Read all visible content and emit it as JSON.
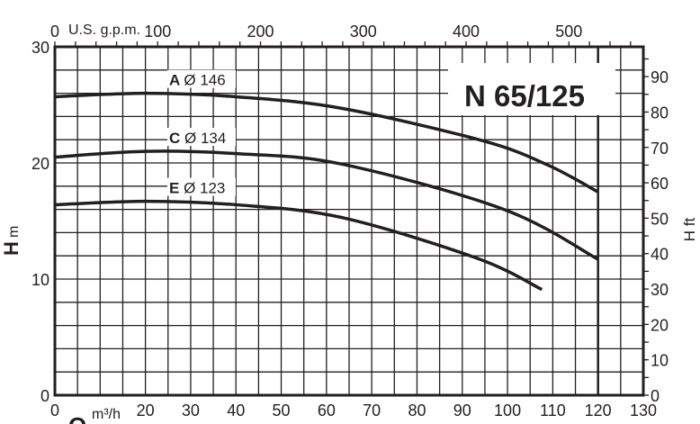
{
  "chart_data": {
    "type": "line",
    "title": "N 65/125",
    "xlabel": "Q",
    "xunit": "m³/h",
    "x2label": "U.S. g.p.m.",
    "ylabel": "H",
    "yunit": "m",
    "y2label": "H ft",
    "xlim": [
      0,
      130
    ],
    "ylim": [
      0,
      30
    ],
    "x2lim_gpm": [
      0,
      572
    ],
    "y2lim_ft": [
      0,
      98.4
    ],
    "grid": true,
    "x_ticks": [
      0,
      20,
      30,
      40,
      50,
      60,
      70,
      80,
      90,
      100,
      110,
      120,
      130
    ],
    "y_ticks": [
      0,
      10,
      20,
      30
    ],
    "x2_ticks": [
      0,
      100,
      200,
      300,
      400,
      500
    ],
    "y2_ticks": [
      0,
      10,
      20,
      30,
      40,
      50,
      60,
      70,
      80,
      90
    ],
    "max_flow_line": 120,
    "series": [
      {
        "name": "A Ø 146",
        "letter": "A",
        "label": "Ø 146",
        "x": [
          0,
          20,
          40,
          63.4,
          94.6,
          109,
          120
        ],
        "y": [
          25.7,
          26.0,
          25.7,
          24.7,
          21.9,
          19.8,
          17.5
        ]
      },
      {
        "name": "C Ø 134",
        "letter": "C",
        "label": "Ø 134",
        "x": [
          0,
          20,
          40,
          63.4,
          99.2,
          120
        ],
        "y": [
          20.5,
          21.0,
          20.8,
          19.9,
          16.0,
          11.7
        ]
      },
      {
        "name": "E Ø 123",
        "letter": "E",
        "label": "Ø 123",
        "x": [
          0,
          20,
          40,
          63.4,
          93.2,
          107.6
        ],
        "y": [
          16.4,
          16.7,
          16.4,
          15.3,
          11.8,
          9.1
        ]
      }
    ],
    "colors": {
      "line": "#231f20",
      "grid": "#231f20",
      "background": "#ffffff"
    }
  }
}
